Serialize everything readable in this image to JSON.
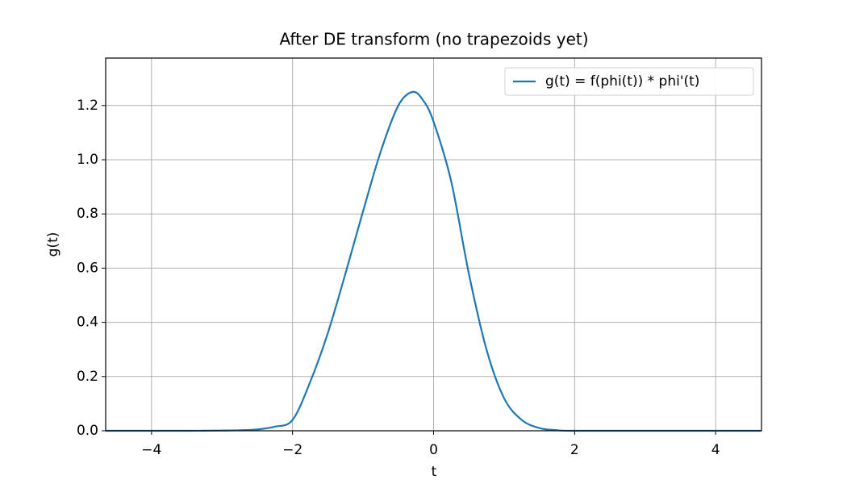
{
  "chart_data": {
    "type": "line",
    "title": "After DE transform (no trapezoids yet)",
    "x_label": "t",
    "y_label": "g(t)",
    "x": [
      -4.65,
      -4,
      -3.5,
      -3,
      -2.75,
      -2.5,
      -2.25,
      -2,
      -1.75,
      -1.5,
      -1.25,
      -1,
      -0.75,
      -0.5,
      -0.3,
      -0.15,
      0,
      0.25,
      0.5,
      0.75,
      1,
      1.25,
      1.5,
      1.75,
      2,
      3,
      4,
      4.65
    ],
    "series": [
      {
        "name": "g(t) = f(phi(t)) * phi'(t)",
        "color": "#1f77b4",
        "values": [
          0,
          0,
          0,
          0.001,
          0.002,
          0.005,
          0.015,
          0.04,
          0.18,
          0.36,
          0.58,
          0.81,
          1.03,
          1.2,
          1.25,
          1.22,
          1.14,
          0.92,
          0.58,
          0.3,
          0.12,
          0.04,
          0.01,
          0.002,
          0,
          0,
          0,
          0
        ]
      }
    ],
    "xlim": [
      -4.65,
      4.65
    ],
    "ylim": [
      0,
      1.375
    ],
    "xticks": [
      {
        "value": -4,
        "label": "−4"
      },
      {
        "value": -2,
        "label": "−2"
      },
      0,
      2,
      4
    ],
    "yticks": [
      {
        "value": 0,
        "label": "0.0"
      },
      0.2,
      0.4,
      0.6,
      0.8,
      {
        "value": 1,
        "label": "1.0"
      },
      1.2
    ],
    "grid": true,
    "legend": "upper right"
  }
}
